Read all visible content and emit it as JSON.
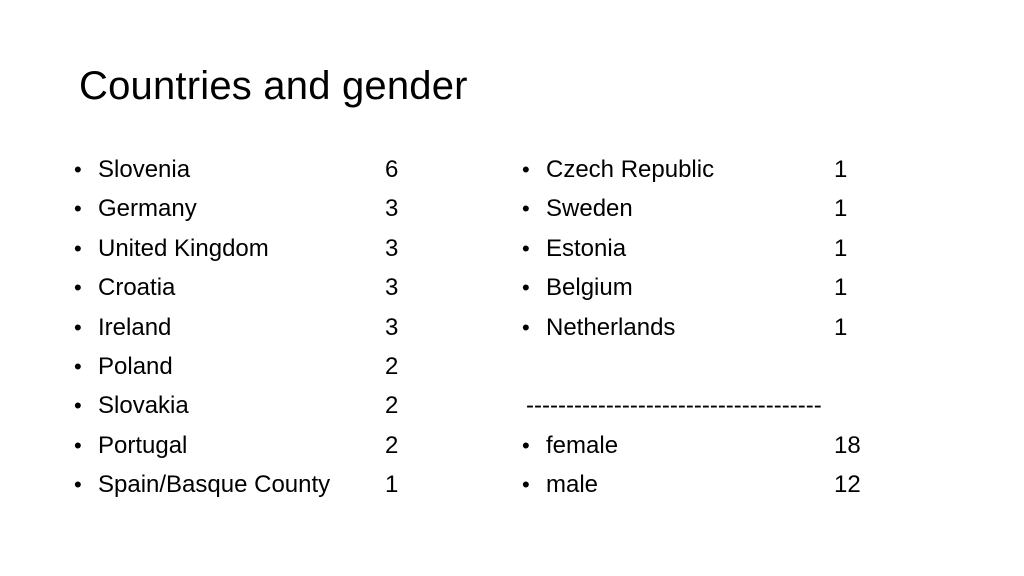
{
  "slide": {
    "title": "Countries and gender"
  },
  "left_column": [
    {
      "label": "Slovenia",
      "value": "6"
    },
    {
      "label": "Germany",
      "value": "3"
    },
    {
      "label": "United Kingdom",
      "value": "3"
    },
    {
      "label": "Croatia",
      "value": "3"
    },
    {
      "label": "Ireland",
      "value": "3"
    },
    {
      "label": "Poland",
      "value": "2"
    },
    {
      "label": "Slovakia",
      "value": "2"
    },
    {
      "label": "Portugal",
      "value": "2"
    },
    {
      "label": "Spain/Basque County",
      "value": "1"
    }
  ],
  "right_column": {
    "countries": [
      {
        "label": "Czech Republic",
        "value": "1"
      },
      {
        "label": "Sweden",
        "value": "1"
      },
      {
        "label": "Estonia",
        "value": "1"
      },
      {
        "label": "Belgium",
        "value": "1"
      },
      {
        "label": "Netherlands",
        "value": "1"
      }
    ],
    "separator": "-------------------------------------",
    "gender": [
      {
        "label": "female",
        "value": "18"
      },
      {
        "label": "male",
        "value": "12"
      }
    ]
  },
  "bullet_glyph": "•"
}
